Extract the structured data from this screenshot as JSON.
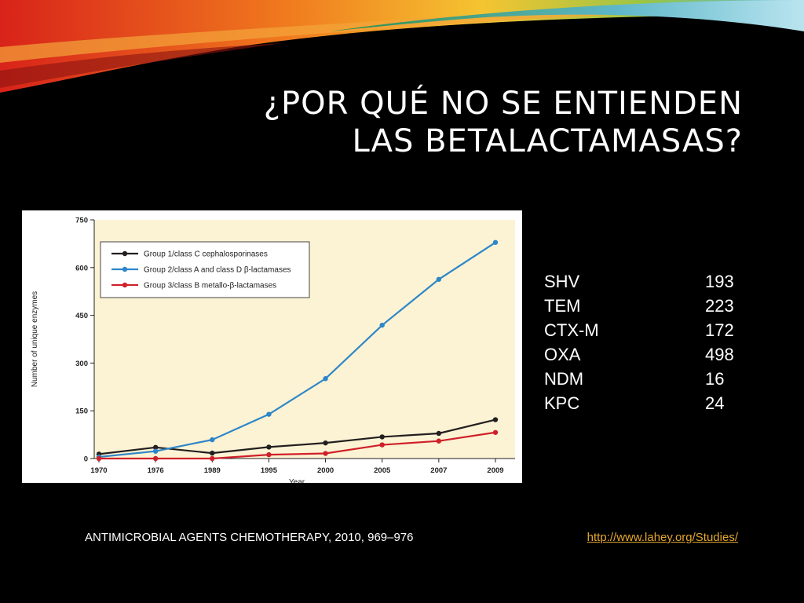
{
  "slide": {
    "title_line1": "¿Por qué no se entienden",
    "title_line2": "las betalactamasas?",
    "citation": "ANTIMICROBIAL AGENTS CHEMOTHERAPY, 2010, 969–976",
    "link": "http://www.lahey.org/Studies/"
  },
  "enzymes": [
    {
      "name": "SHV",
      "count": "193"
    },
    {
      "name": "TEM",
      "count": "223"
    },
    {
      "name": "CTX-M",
      "count": "172"
    },
    {
      "name": "OXA",
      "count": "498"
    },
    {
      "name": "NDM",
      "count": "16"
    },
    {
      "name": "KPC",
      "count": "24"
    }
  ],
  "colors": {
    "background": "#000000",
    "plot_background": "#fcf3d4",
    "group1": "#231f20",
    "group2": "#2e86c8",
    "group3": "#d0202a",
    "link": "#e3a72f"
  },
  "chart_data": {
    "type": "line",
    "xlabel": "Year",
    "ylabel": "Number of unique enzymes",
    "categories": [
      "1970",
      "1976",
      "1989",
      "1995",
      "2000",
      "2005",
      "2007",
      "2009"
    ],
    "yticks": [
      "0",
      "150",
      "300",
      "450",
      "600",
      "750"
    ],
    "ylim": [
      0,
      750
    ],
    "grid": false,
    "legend_position": "top-left",
    "series": [
      {
        "name": "Group 1/class C cephalosporinases",
        "color": "#231f20",
        "values": [
          14,
          35,
          17,
          36,
          49,
          68,
          79,
          122
        ]
      },
      {
        "name": "Group 2/class A and class D β-lactamases",
        "color": "#2e86c8",
        "values": [
          5,
          23,
          59,
          139,
          251,
          419,
          563,
          679
        ]
      },
      {
        "name": "Group 3/class B metallo-β-lactamases",
        "color": "#d0202a",
        "values": [
          0,
          0,
          0,
          12,
          16,
          43,
          55,
          82
        ]
      }
    ]
  }
}
